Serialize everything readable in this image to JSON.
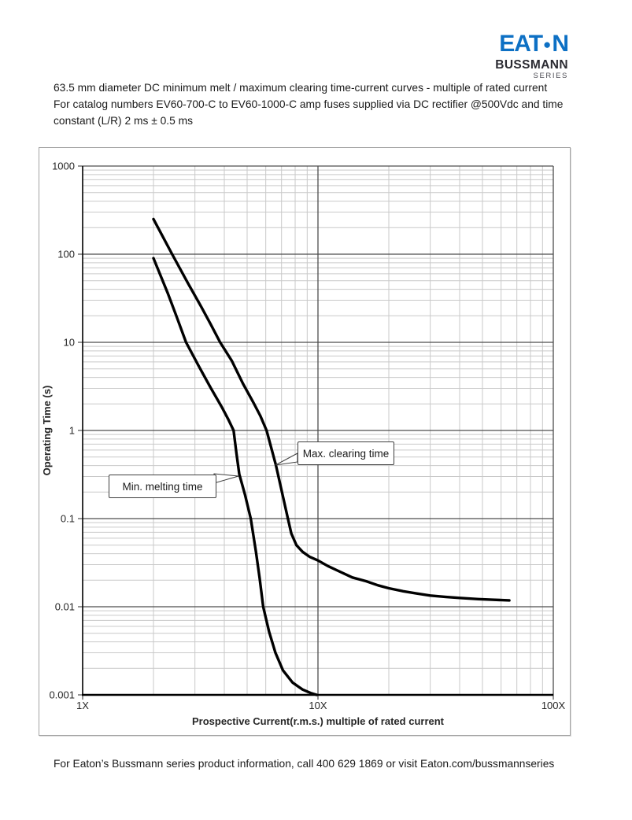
{
  "brand": {
    "logo_left": "EAT",
    "logo_dot": "●",
    "logo_right": "N",
    "wordmark": "BUSSMANN",
    "series_sub": "SERIES"
  },
  "header": {
    "line1": "63.5 mm diameter DC minimum melt / maximum clearing time-current curves - multiple of rated current",
    "line2": "For catalog numbers EV60-700-C to EV60-1000-C amp fuses supplied via DC rectifier @500Vdc and time",
    "line3": "constant (L/R) 2 ms ± 0.5 ms"
  },
  "footer": {
    "text": "For Eaton’s Bussmann series product information, call 400 629 1869 or visit Eaton.com/bussmannseries"
  },
  "colors": {
    "brand_blue": "#0d70c4",
    "curve": "#000000",
    "grid_minor": "#c9c9c9",
    "grid_major": "#4d4d4d",
    "axis": "#000000",
    "frame_border": "#a3a3a3",
    "callout_border": "#3f3f3f"
  },
  "chart_data": {
    "type": "line",
    "title": "",
    "xlabel": "Prospective Current(r.m.s.) multiple of rated current",
    "ylabel": "Operating Time (s)",
    "x_scale": "log",
    "y_scale": "log",
    "xlim": [
      1,
      100
    ],
    "ylim": [
      0.001,
      1000
    ],
    "grid": "log major (dark) + log minor (light)",
    "legend_position": "callout boxes on curves",
    "x_ticks": [
      {
        "value": 1,
        "label": "1X"
      },
      {
        "value": 10,
        "label": "10X"
      },
      {
        "value": 100,
        "label": "100X"
      }
    ],
    "y_ticks": [
      {
        "value": 1000,
        "label": "1000"
      },
      {
        "value": 100,
        "label": "100"
      },
      {
        "value": 10,
        "label": "10"
      },
      {
        "value": 1,
        "label": "1"
      },
      {
        "value": 0.1,
        "label": "0.1"
      },
      {
        "value": 0.01,
        "label": "0.01"
      },
      {
        "value": 0.001,
        "label": "0.001"
      }
    ],
    "series": [
      {
        "name": "Min. melting time",
        "points": [
          [
            2,
            90
          ],
          [
            2.3,
            36
          ],
          [
            2.5,
            20
          ],
          [
            2.75,
            10
          ],
          [
            3.1,
            5.5
          ],
          [
            3.5,
            3.05
          ],
          [
            3.9,
            1.85
          ],
          [
            4.15,
            1.35
          ],
          [
            4.38,
            1.0
          ],
          [
            4.5,
            0.56
          ],
          [
            4.63,
            0.32
          ],
          [
            4.9,
            0.185
          ],
          [
            5.18,
            0.1
          ],
          [
            5.45,
            0.042
          ],
          [
            5.65,
            0.021
          ],
          [
            5.85,
            0.01
          ],
          [
            6.2,
            0.0052
          ],
          [
            6.6,
            0.003
          ],
          [
            7.1,
            0.0019
          ],
          [
            7.8,
            0.00138
          ],
          [
            8.6,
            0.00115
          ],
          [
            9.3,
            0.00105
          ],
          [
            9.88,
            0.001
          ]
        ]
      },
      {
        "name": "Max. clearing time",
        "points": [
          [
            2,
            250
          ],
          [
            2.4,
            100
          ],
          [
            2.8,
            47
          ],
          [
            3.2,
            25
          ],
          [
            3.5,
            16
          ],
          [
            3.84,
            10
          ],
          [
            4.3,
            6.2
          ],
          [
            4.8,
            3.4
          ],
          [
            5.3,
            2.1
          ],
          [
            5.7,
            1.45
          ],
          [
            6.05,
            1.0
          ],
          [
            6.62,
            0.41
          ],
          [
            7.0,
            0.21
          ],
          [
            7.45,
            0.1
          ],
          [
            7.7,
            0.068
          ],
          [
            8.1,
            0.05
          ],
          [
            8.6,
            0.042
          ],
          [
            9.2,
            0.037
          ],
          [
            10,
            0.0335
          ],
          [
            11,
            0.029
          ],
          [
            12,
            0.026
          ],
          [
            14,
            0.0215
          ],
          [
            16,
            0.0195
          ],
          [
            18,
            0.0175
          ],
          [
            20,
            0.0162
          ],
          [
            23,
            0.015
          ],
          [
            26,
            0.0142
          ],
          [
            30,
            0.0134
          ],
          [
            35,
            0.0129
          ],
          [
            40,
            0.0126
          ],
          [
            48,
            0.0122
          ],
          [
            55,
            0.012
          ],
          [
            65,
            0.0118
          ]
        ]
      }
    ]
  }
}
